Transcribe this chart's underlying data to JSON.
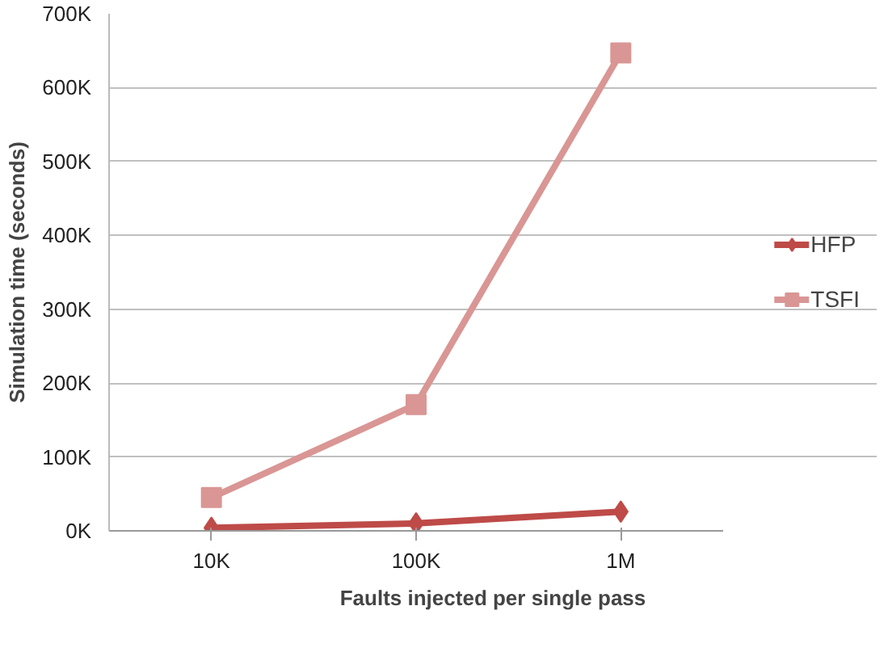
{
  "chart_data": {
    "type": "line",
    "xlabel": "Faults injected per single pass",
    "ylabel": "Simulation time (seconds)",
    "categories": [
      "10K",
      "100K",
      "1M"
    ],
    "series": [
      {
        "name": "HFP",
        "color": "#be4b48",
        "marker": "diamond",
        "values": [
          4000,
          10000,
          26000
        ]
      },
      {
        "name": "TSFI",
        "color": "#d99694",
        "marker": "square",
        "values": [
          45000,
          171000,
          647000
        ]
      }
    ],
    "ylim": [
      0,
      700000
    ],
    "yticks": [
      {
        "value": 0,
        "label": "0K"
      },
      {
        "value": 100000,
        "label": "100K"
      },
      {
        "value": 200000,
        "label": "200K"
      },
      {
        "value": 300000,
        "label": "300K"
      },
      {
        "value": 400000,
        "label": "400K"
      },
      {
        "value": 500000,
        "label": "500K"
      },
      {
        "value": 600000,
        "label": "600K"
      },
      {
        "value": 700000,
        "label": "700K"
      }
    ],
    "grid": "y",
    "legend": "right",
    "line_style": "solid"
  }
}
